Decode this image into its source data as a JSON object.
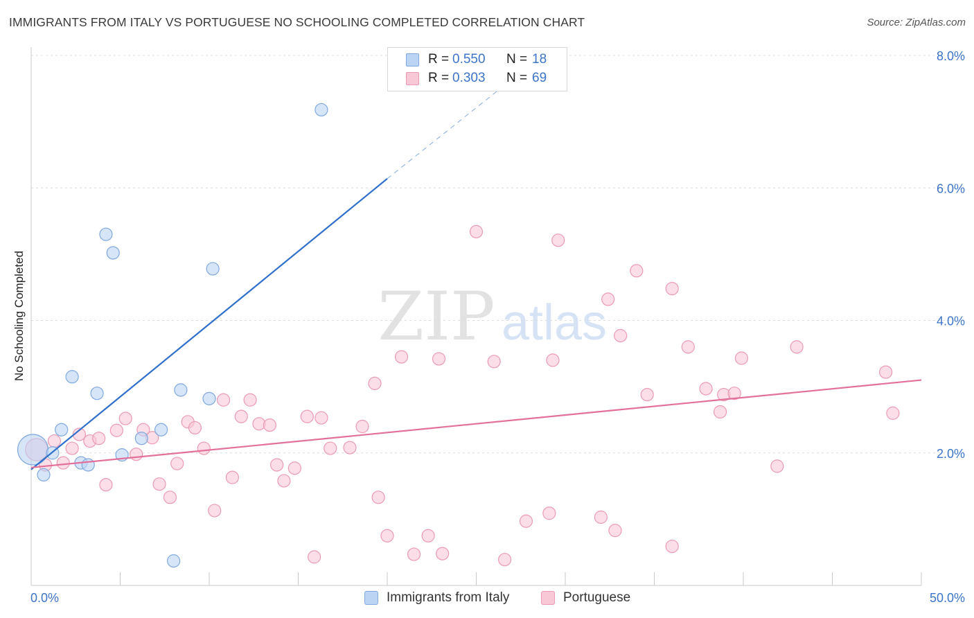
{
  "title": "IMMIGRANTS FROM ITALY VS PORTUGUESE NO SCHOOLING COMPLETED CORRELATION CHART",
  "source": "Source: ZipAtlas.com",
  "watermark": {
    "zip": "ZIP",
    "atlas": "atlas"
  },
  "legend": {
    "italy": {
      "r_label": "R =",
      "r_value": "0.550",
      "n_label": "N =",
      "n_value": "18"
    },
    "portuguese": {
      "r_label": "R =",
      "r_value": "0.303",
      "n_label": "N =",
      "n_value": "69"
    }
  },
  "bottom_legend": {
    "italy": "Immigrants from Italy",
    "portuguese": "Portuguese"
  },
  "colors": {
    "italy_fill": "#bcd4f4",
    "italy_stroke": "#7fa8de",
    "italy_line": "#2f6fcc",
    "port_fill": "#f9c8d7",
    "port_stroke": "#ec9ab4",
    "port_line": "#e2709a",
    "tick_label": "#3b74c9",
    "grid": "#dcdcdc"
  },
  "chart_data": {
    "type": "scatter",
    "title": "IMMIGRANTS FROM ITALY VS PORTUGUESE NO SCHOOLING COMPLETED CORRELATION CHART",
    "xlabel": "",
    "ylabel": "No Schooling Completed",
    "xlim": [
      0,
      50
    ],
    "ylim": [
      0,
      8.0
    ],
    "x_tick_labels": {
      "min": "0.0%",
      "max": "50.0%"
    },
    "y_ticks": [
      {
        "value": 2,
        "label": "2.0%"
      },
      {
        "value": 4,
        "label": "4.0%"
      },
      {
        "value": 6,
        "label": "6.0%"
      },
      {
        "value": 8,
        "label": "8.0%"
      }
    ],
    "series": [
      {
        "name": "Immigrants from Italy",
        "color_key": "italy",
        "points": [
          [
            0.1,
            2.05,
            22
          ],
          [
            0.7,
            1.67,
            9
          ],
          [
            1.2,
            2.0,
            9
          ],
          [
            1.7,
            2.35,
            9
          ],
          [
            2.3,
            3.15,
            9
          ],
          [
            2.8,
            1.85,
            9
          ],
          [
            3.2,
            1.82,
            9
          ],
          [
            3.7,
            2.9,
            9
          ],
          [
            4.2,
            5.3,
            9
          ],
          [
            4.6,
            5.02,
            9
          ],
          [
            5.1,
            1.97,
            9
          ],
          [
            6.2,
            2.22,
            9
          ],
          [
            7.3,
            2.35,
            9
          ],
          [
            8.0,
            0.37,
            9
          ],
          [
            8.4,
            2.95,
            9
          ],
          [
            10.0,
            2.82,
            9
          ],
          [
            10.2,
            4.78,
            9
          ],
          [
            16.3,
            7.18,
            9
          ]
        ],
        "trend": {
          "x_start": 0.0,
          "y_start": 1.75,
          "x_solid_end": 20.0,
          "y_solid_end": 6.14,
          "x_dash_end": 28.5,
          "y_dash_end": 7.96
        }
      },
      {
        "name": "Portuguese",
        "color_key": "portuguese",
        "points": [
          [
            0.3,
            2.05,
            16
          ],
          [
            0.8,
            1.82,
            9
          ],
          [
            1.3,
            2.18,
            9
          ],
          [
            1.8,
            1.85,
            9
          ],
          [
            2.3,
            2.07,
            9
          ],
          [
            2.7,
            2.28,
            9
          ],
          [
            3.3,
            2.18,
            9
          ],
          [
            3.8,
            2.22,
            9
          ],
          [
            4.2,
            1.52,
            9
          ],
          [
            4.8,
            2.34,
            9
          ],
          [
            5.3,
            2.52,
            9
          ],
          [
            5.9,
            1.98,
            9
          ],
          [
            6.3,
            2.35,
            9
          ],
          [
            6.8,
            2.23,
            9
          ],
          [
            7.2,
            1.53,
            9
          ],
          [
            7.8,
            1.33,
            9
          ],
          [
            8.2,
            1.84,
            9
          ],
          [
            8.8,
            2.47,
            9
          ],
          [
            9.2,
            2.38,
            9
          ],
          [
            9.7,
            2.07,
            9
          ],
          [
            10.3,
            1.13,
            9
          ],
          [
            10.8,
            2.8,
            9
          ],
          [
            11.3,
            1.63,
            9
          ],
          [
            11.8,
            2.55,
            9
          ],
          [
            12.3,
            2.8,
            9
          ],
          [
            12.8,
            2.44,
            9
          ],
          [
            13.4,
            2.42,
            9
          ],
          [
            13.8,
            1.82,
            9
          ],
          [
            14.2,
            1.58,
            9
          ],
          [
            14.8,
            1.77,
            9
          ],
          [
            15.5,
            2.55,
            9
          ],
          [
            15.9,
            0.43,
            9
          ],
          [
            16.3,
            2.53,
            9
          ],
          [
            16.8,
            2.07,
            9
          ],
          [
            17.9,
            2.08,
            9
          ],
          [
            18.6,
            2.4,
            9
          ],
          [
            19.3,
            3.05,
            9
          ],
          [
            19.5,
            1.33,
            9
          ],
          [
            20.0,
            0.75,
            9
          ],
          [
            20.8,
            3.45,
            9
          ],
          [
            21.5,
            0.47,
            9
          ],
          [
            22.3,
            0.75,
            9
          ],
          [
            22.9,
            3.42,
            9
          ],
          [
            23.1,
            0.48,
            9
          ],
          [
            25.0,
            5.34,
            9
          ],
          [
            26.0,
            3.38,
            9
          ],
          [
            26.6,
            0.39,
            9
          ],
          [
            27.8,
            0.97,
            9
          ],
          [
            29.1,
            1.09,
            9
          ],
          [
            29.3,
            3.4,
            9
          ],
          [
            29.6,
            5.21,
            9
          ],
          [
            32.0,
            1.03,
            9
          ],
          [
            32.4,
            4.32,
            9
          ],
          [
            32.8,
            0.83,
            9
          ],
          [
            33.1,
            3.77,
            9
          ],
          [
            34.0,
            4.75,
            9
          ],
          [
            34.6,
            2.88,
            9
          ],
          [
            36.0,
            4.48,
            9
          ],
          [
            36.0,
            0.59,
            9
          ],
          [
            36.9,
            3.6,
            9
          ],
          [
            37.9,
            2.97,
            9
          ],
          [
            38.7,
            2.62,
            9
          ],
          [
            38.9,
            2.88,
            9
          ],
          [
            39.5,
            2.9,
            9
          ],
          [
            39.9,
            3.43,
            9
          ],
          [
            41.9,
            1.8,
            9
          ],
          [
            43.0,
            3.6,
            9
          ],
          [
            48.0,
            3.22,
            9
          ],
          [
            48.4,
            2.6,
            9
          ]
        ],
        "trend": {
          "x_start": 0.0,
          "y_start": 1.78,
          "x_end": 50.0,
          "y_end": 3.1
        }
      }
    ]
  }
}
